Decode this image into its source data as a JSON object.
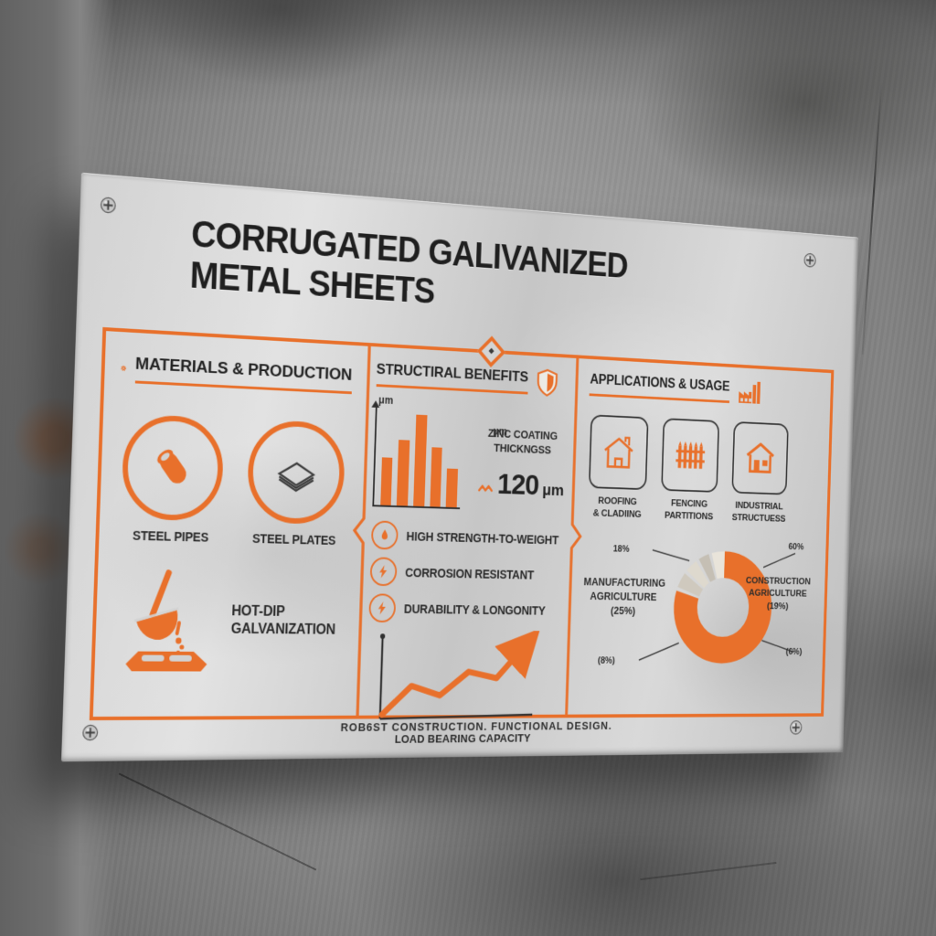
{
  "poster": {
    "title_line1": "CORRUGATED GALIVANIZED",
    "title_line2": "METAL SHEETS",
    "tagline": "ROB6ST CONSTRUCTION. FUNCTIONAL DESIGN.",
    "accent_color": "#E8702B",
    "text_color": "#262626"
  },
  "sections": {
    "materials": {
      "title": "MATERIALS & PRODUCTION",
      "items": [
        {
          "label": "STEEL PIPES",
          "icon": "steel-pipe-icon"
        },
        {
          "label": "STEEL PLATES",
          "icon": "steel-plates-icon"
        }
      ],
      "process": {
        "label_line1": "HOT-DIP",
        "label_line2": "GALVANIZATION",
        "icon": "hot-dip-ladle-icon"
      }
    },
    "benefits": {
      "title": "STRUCTIRAL BENEFITS",
      "icon": "shield-icon",
      "zinc": {
        "axis_label": "μm",
        "unit_label": "μm",
        "caption_line1": "ZINC COATING",
        "caption_line2": "THICKNGSS",
        "value_number": "120",
        "value_unit": "μm"
      },
      "bullets": [
        {
          "icon": "droplet-icon",
          "label": "HIGH STRENGTH-TO-WEIGHT"
        },
        {
          "icon": "bolt-icon",
          "label": "CORROSION RESISTANT"
        },
        {
          "icon": "bolt-icon",
          "label": "DURABILITY & LONGONITY"
        }
      ],
      "line_chart_label": "LOAD BEARING CAPACITY"
    },
    "applications": {
      "title": "APPLICATIONS & USAGE",
      "icon": "factory-icon",
      "uses": [
        {
          "line1": "ROOFING",
          "line2": "& CLADIING",
          "icon": "house-outline-icon"
        },
        {
          "line1": "FENCING",
          "line2": "PARTITIONS",
          "icon": "fence-icon"
        },
        {
          "line1": "INDUSTRIAL",
          "line2": "STRUCTUESS",
          "icon": "industrial-building-icon"
        }
      ],
      "donut_labels": {
        "top_left": "18%",
        "bottom_left": "(8%)",
        "top_right": "60%",
        "bottom_right": "(6%)",
        "left_line1": "MANUFACTURING",
        "left_line2": "AGRICULTURE",
        "left_line3": "(25%)",
        "right_line1": "CONSTRUCTION",
        "right_line2": "AGRICULTURE",
        "right_line3": "(19%)"
      }
    }
  },
  "chart_data": [
    {
      "type": "bar",
      "title": "ZINC COATING THICKNGSS",
      "ylabel": "μm",
      "categories": [
        "",
        "",
        "",
        "",
        ""
      ],
      "values": [
        52,
        72,
        100,
        65,
        42
      ],
      "annotation": "120 μm",
      "bar_color": "#E8702B"
    },
    {
      "type": "line",
      "title": "LOAD BEARING CAPACITY",
      "x": [
        0,
        1,
        2,
        3,
        4,
        5
      ],
      "y": [
        4,
        40,
        28,
        58,
        50,
        92
      ],
      "line_color": "#E8702B",
      "arrow_end": true
    },
    {
      "type": "pie",
      "title": "APPLICATIONS & USAGE share",
      "donut": true,
      "segments": [
        {
          "label": "CONSTRUCTION",
          "value": 60,
          "color": "#E8702B"
        },
        {
          "label": "MANUFACTURING / AGRICULTURE",
          "value": 25,
          "color": "#cfc9be"
        },
        {
          "label": "AGRICULTURE",
          "value": 19,
          "color": "#ded9ce"
        },
        {
          "label": "18%",
          "value": 18,
          "color": "#c5bfb4"
        },
        {
          "label": "(8%)",
          "value": 8,
          "color": "#e9e4da"
        },
        {
          "label": "(6%)",
          "value": 6,
          "color": "#bdb7ad"
        }
      ]
    }
  ]
}
